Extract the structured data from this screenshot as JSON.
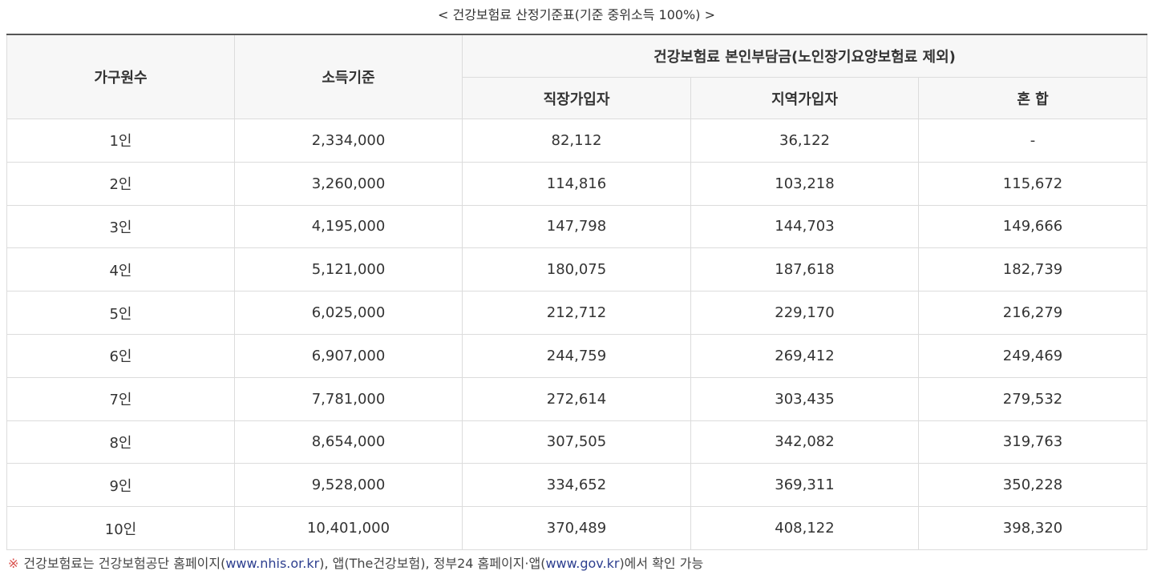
{
  "caption": "< 건강보험료 산정기준표(기준 중위소득 100%) >",
  "header": {
    "household": "가구원수",
    "income": "소득기준",
    "group": "건강보험료 본인부담금(노인장기요양보험료 제외)",
    "workplace": "직장가입자",
    "regional": "지역가입자",
    "mixed": "혼 합"
  },
  "rows": [
    {
      "household": "1인",
      "income": "2,334,000",
      "workplace": "82,112",
      "regional": "36,122",
      "mixed": "-"
    },
    {
      "household": "2인",
      "income": "3,260,000",
      "workplace": "114,816",
      "regional": "103,218",
      "mixed": "115,672"
    },
    {
      "household": "3인",
      "income": "4,195,000",
      "workplace": "147,798",
      "regional": "144,703",
      "mixed": "149,666"
    },
    {
      "household": "4인",
      "income": "5,121,000",
      "workplace": "180,075",
      "regional": "187,618",
      "mixed": "182,739"
    },
    {
      "household": "5인",
      "income": "6,025,000",
      "workplace": "212,712",
      "regional": "229,170",
      "mixed": "216,279"
    },
    {
      "household": "6인",
      "income": "6,907,000",
      "workplace": "244,759",
      "regional": "269,412",
      "mixed": "249,469"
    },
    {
      "household": "7인",
      "income": "7,781,000",
      "workplace": "272,614",
      "regional": "303,435",
      "mixed": "279,532"
    },
    {
      "household": "8인",
      "income": "8,654,000",
      "workplace": "307,505",
      "regional": "342,082",
      "mixed": "319,763"
    },
    {
      "household": "9인",
      "income": "9,528,000",
      "workplace": "334,652",
      "regional": "369,311",
      "mixed": "350,228"
    },
    {
      "household": "10인",
      "income": "10,401,000",
      "workplace": "370,489",
      "regional": "408,122",
      "mixed": "398,320"
    }
  ],
  "note": {
    "mark": "※",
    "part1": "건강보험료는 건강보험공단 홈페이지(",
    "link1": "www.nhis.or.kr",
    "part2": "), 앱(The건강보험), 정부24 홈페이지·앱(",
    "link2": "www.gov.kr",
    "part3": ")에서 확인 가능"
  },
  "colors": {
    "header_bg": "#f7f7f7",
    "border": "#dcdcdc",
    "top_rule": "#555555",
    "note_mark": "#d9534f",
    "note_link": "#2d3f8f"
  }
}
